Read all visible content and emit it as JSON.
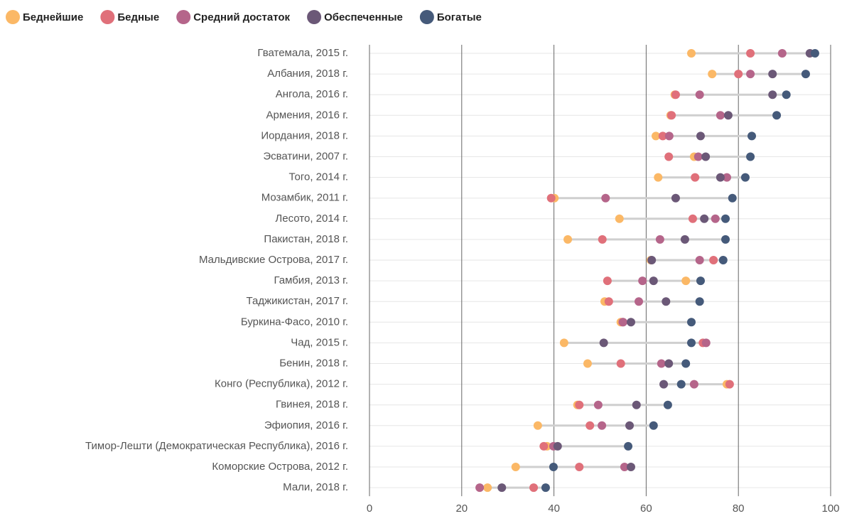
{
  "chart_data": {
    "type": "dot",
    "categories": [
      "Гватемала, 2015 г.",
      "Албания, 2018 г.",
      "Ангола, 2016 г.",
      "Армения, 2016 г.",
      "Иордания, 2018 г.",
      "Эсватини, 2007 г.",
      "Того, 2014 г.",
      "Мозамбик, 2011 г.",
      "Лесото, 2014 г.",
      "Пакистан, 2018 г.",
      "Мальдивские Острова, 2017 г.",
      "Гамбия, 2013 г.",
      "Таджикистан, 2017 г.",
      "Буркина-Фасо, 2010 г.",
      "Чад, 2015 г.",
      "Бенин, 2018 г.",
      "Конго (Республика), 2012 г.",
      "Гвинея, 2018 г.",
      "Эфиопия, 2016 г.",
      "Тимор-Лешти (Демократическая Республика), 2016 г.",
      "Коморские Острова, 2012 г.",
      "Мали, 2018 г."
    ],
    "series": [
      {
        "name": "Беднейшие",
        "color": "#fbb866",
        "values": [
          69.8,
          74.3,
          66.2,
          65.3,
          62.1,
          70.4,
          62.6,
          40.1,
          54.2,
          43.0,
          61.0,
          68.6,
          51.0,
          54.5,
          42.2,
          47.3,
          77.5,
          45.1,
          36.5,
          38.5,
          31.7,
          25.6
        ]
      },
      {
        "name": "Бедные",
        "color": "#e0707a",
        "values": [
          82.6,
          80.0,
          66.4,
          65.5,
          63.6,
          64.9,
          70.6,
          39.4,
          70.1,
          50.5,
          74.6,
          51.6,
          51.9,
          54.9,
          72.3,
          54.5,
          78.1,
          45.5,
          47.8,
          37.8,
          45.5,
          35.6
        ]
      },
      {
        "name": "Средний достаток",
        "color": "#b5658a",
        "values": [
          89.5,
          82.6,
          71.6,
          76.1,
          65.0,
          71.3,
          77.5,
          51.2,
          75.0,
          63.0,
          71.6,
          59.2,
          58.4,
          55.0,
          73.0,
          63.3,
          70.4,
          49.6,
          50.4,
          39.9,
          55.3,
          23.9
        ]
      },
      {
        "name": "Обеспеченные",
        "color": "#6b5877",
        "values": [
          95.5,
          87.4,
          87.4,
          77.8,
          71.8,
          72.9,
          76.1,
          66.4,
          72.6,
          68.4,
          61.2,
          61.6,
          64.3,
          56.7,
          50.8,
          64.9,
          63.8,
          57.9,
          56.4,
          40.8,
          56.7,
          28.7
        ]
      },
      {
        "name": "Богатые",
        "color": "#455a7a",
        "values": [
          96.6,
          94.6,
          90.4,
          88.3,
          82.9,
          82.6,
          81.5,
          78.7,
          77.2,
          77.2,
          76.7,
          71.8,
          71.6,
          69.8,
          69.8,
          68.6,
          67.6,
          64.7,
          61.6,
          56.1,
          39.9,
          38.2
        ]
      }
    ],
    "xlim": [
      0,
      100
    ],
    "xticks": [
      0,
      20,
      40,
      60,
      80,
      100
    ],
    "grid": true
  }
}
